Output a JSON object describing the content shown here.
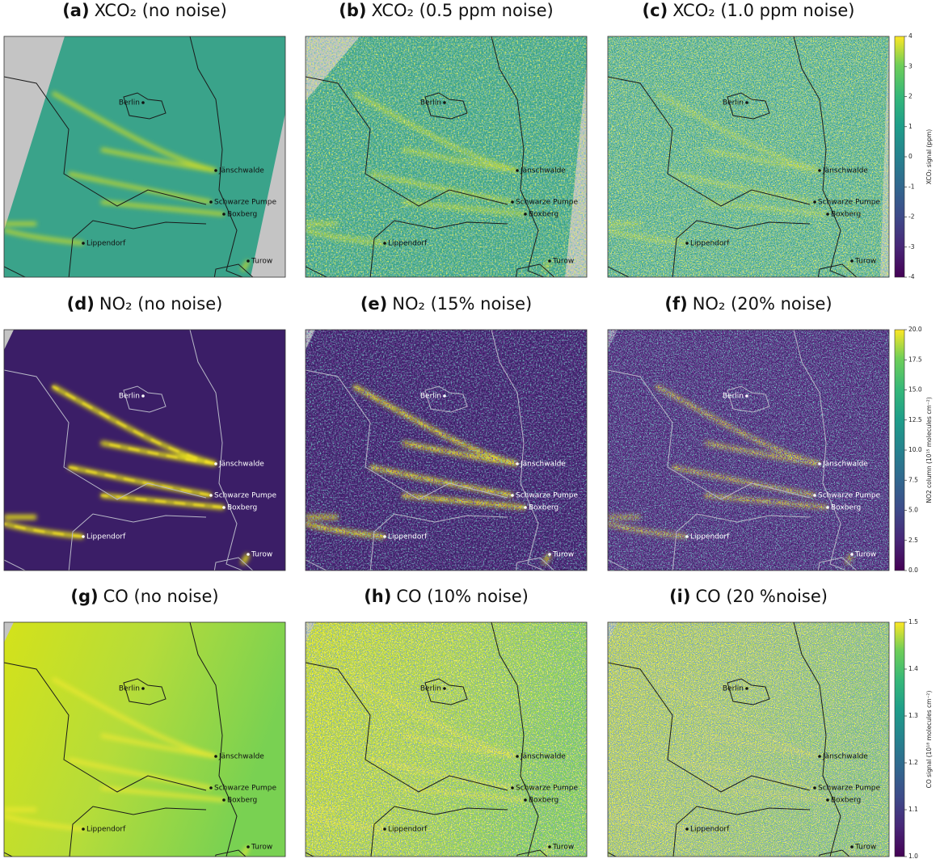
{
  "panels": [
    {
      "label": "(a)",
      "title": "XCO₂ (no noise)"
    },
    {
      "label": "(b)",
      "title": "XCO₂ (0.5 ppm noise)"
    },
    {
      "label": "(c)",
      "title": "XCO₂ (1.0 ppm noise)"
    },
    {
      "label": "(d)",
      "title": "NO₂ (no noise)"
    },
    {
      "label": "(e)",
      "title": "NO₂ (15% noise)"
    },
    {
      "label": "(f)",
      "title": "NO₂ (20% noise)"
    },
    {
      "label": "(g)",
      "title": "CO (no noise)"
    },
    {
      "label": "(h)",
      "title": "CO (10% noise)"
    },
    {
      "label": "(i)",
      "title": "CO (20 %noise)"
    }
  ],
  "cities": [
    "Berlin",
    "Jänschwalde",
    "Schwarze Pumpe",
    "Boxberg",
    "Lippendorf",
    "Turow"
  ],
  "colorbars": [
    {
      "label": "XCO₂ signal (ppm)",
      "lim": [
        -4,
        4
      ],
      "ticks": [
        -4,
        -3,
        -2,
        -1,
        0,
        1,
        2,
        3,
        4
      ]
    },
    {
      "label": "NO2 column (10¹⁵ molecules cm⁻²)",
      "lim": [
        0,
        20
      ],
      "ticks": [
        {
          "value": 0,
          "label": "0.0"
        },
        2.5,
        {
          "value": 5,
          "label": "5.0"
        },
        7.5,
        {
          "value": 10,
          "label": "10.0"
        },
        12.5,
        {
          "value": 15,
          "label": "15.0"
        },
        17.5,
        {
          "value": 20,
          "label": "20.0"
        }
      ]
    },
    {
      "label": "CO signal (10¹⁸ molecules cm⁻²)",
      "lim": [
        1,
        1.5
      ],
      "ticks": [
        {
          "value": 1,
          "label": "1.0"
        },
        1.1,
        1.2,
        1.3,
        1.4,
        1.5
      ]
    }
  ]
}
